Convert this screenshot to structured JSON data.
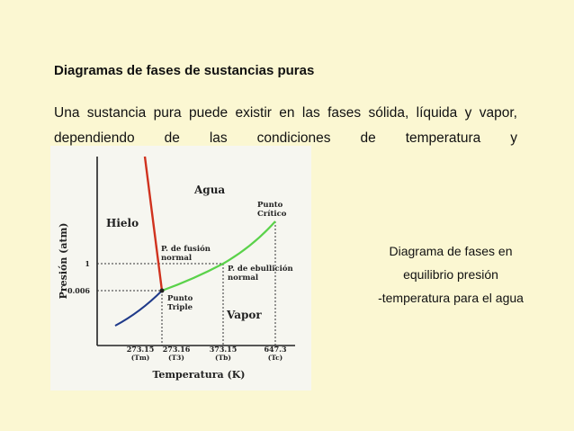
{
  "slide": {
    "title": "Diagramas de fases de sustancias puras",
    "paragraph": "Una sustancia pura puede existir en las fases sólida, líquida y vapor, dependiendo de las condiciones de temperatura y",
    "caption_lines": [
      "Diagrama de fases en",
      "equilibrio presión",
      "-temperatura para el agua"
    ]
  },
  "diagram": {
    "y_axis_label": "Presión (atm)",
    "x_axis_label": "Temperatura (K)",
    "y_ticks": [
      "1",
      "0.006"
    ],
    "x_ticks": [
      {
        "value": "273.15",
        "sub": "(Tm)"
      },
      {
        "value": "273.16",
        "sub": "(T3)"
      },
      {
        "value": "373.15",
        "sub": "(Tb)"
      },
      {
        "value": "647.3",
        "sub": "(Tc)"
      }
    ],
    "regions": {
      "solid": "Hielo",
      "liquid": "Agua",
      "vapor": "Vapor"
    },
    "points": {
      "critical": [
        "Punto",
        "Crítico"
      ],
      "fusion": [
        "P. de fusión",
        "normal"
      ],
      "boiling": [
        "P. de ebullición",
        "normal"
      ],
      "triple": [
        "Punto",
        "Triple"
      ]
    },
    "colors": {
      "fusion_curve": "#d0321e",
      "vaporization_curve": "#5ad24a",
      "sublimation_curve": "#1f3a8a",
      "axis": "#222222"
    }
  }
}
